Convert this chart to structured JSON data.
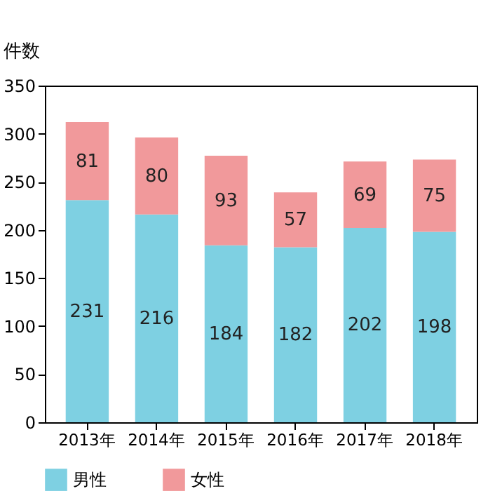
{
  "chart_data": {
    "type": "bar",
    "ylabel": "件数",
    "categories": [
      "2013年",
      "2014年",
      "2015年",
      "2016年",
      "2017年",
      "2018年"
    ],
    "series": [
      {
        "name": "男性",
        "color": "#7ed0e2",
        "values": [
          231,
          216,
          184,
          182,
          202,
          198
        ]
      },
      {
        "name": "女性",
        "color": "#f1999b",
        "values": [
          81,
          80,
          93,
          57,
          69,
          75
        ]
      }
    ],
    "stacked": true,
    "ylim": [
      0,
      350
    ],
    "yticks": [
      0,
      50,
      100,
      150,
      200,
      250,
      300,
      350
    ],
    "data_labels": true,
    "legend": "bottom",
    "grid": false
  }
}
